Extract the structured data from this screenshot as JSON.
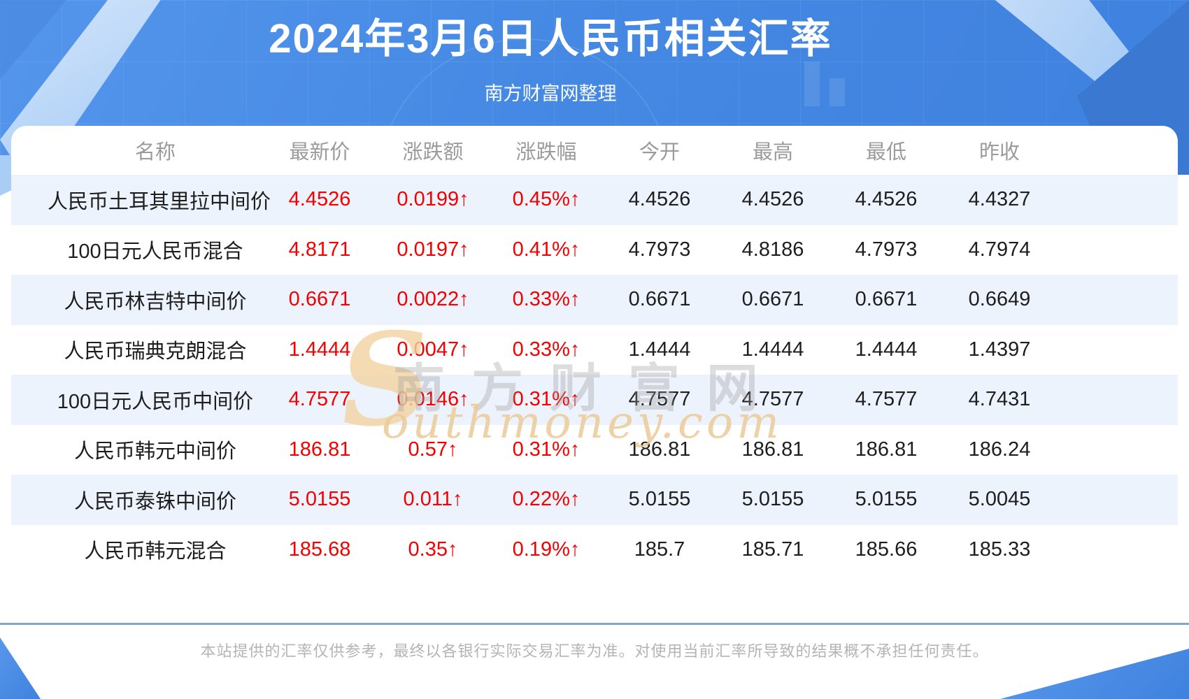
{
  "header": {
    "title": "2024年3月6日人民币相关汇率",
    "subtitle": "南方财富网整理"
  },
  "watermark": {
    "s": "S",
    "hanzi": "南方财富网",
    "latin": "outhmoney.com"
  },
  "table": {
    "columns": [
      "名称",
      "最新价",
      "涨跌额",
      "涨跌幅",
      "今开",
      "最高",
      "最低",
      "昨收"
    ],
    "rows": [
      [
        "人民币土耳其里拉中间价",
        "4.4526",
        "0.0199↑",
        "0.45%↑",
        "4.4526",
        "4.4526",
        "4.4526",
        "4.4327"
      ],
      [
        "100日元人民币混合",
        "4.8171",
        "0.0197↑",
        "0.41%↑",
        "4.7973",
        "4.8186",
        "4.7973",
        "4.7974"
      ],
      [
        "人民币林吉特中间价",
        "0.6671",
        "0.0022↑",
        "0.33%↑",
        "0.6671",
        "0.6671",
        "0.6671",
        "0.6649"
      ],
      [
        "人民币瑞典克朗混合",
        "1.4444",
        "0.0047↑",
        "0.33%↑",
        "1.4444",
        "1.4444",
        "1.4444",
        "1.4397"
      ],
      [
        "100日元人民币中间价",
        "4.7577",
        "0.0146↑",
        "0.31%↑",
        "4.7577",
        "4.7577",
        "4.7577",
        "4.7431"
      ],
      [
        "人民币韩元中间价",
        "186.81",
        "0.57↑",
        "0.31%↑",
        "186.81",
        "186.81",
        "186.81",
        "186.24"
      ],
      [
        "人民币泰铢中间价",
        "5.0155",
        "0.011↑",
        "0.22%↑",
        "5.0155",
        "5.0155",
        "5.0155",
        "5.0045"
      ],
      [
        "人民币韩元混合",
        "185.68",
        "0.35↑",
        "0.19%↑",
        "185.7",
        "185.71",
        "185.66",
        "185.33"
      ]
    ]
  },
  "footer": {
    "disclaimer": "本站提供的汇率仅供参考，最终以各银行实际交易汇率为准。对使用当前汇率所导致的结果概不承担任何责任。"
  },
  "colors": {
    "accent_blue": "#4287e2",
    "up_red": "#f40000",
    "row_alt": "#edf3fc",
    "divider": "#8aa2c4"
  }
}
